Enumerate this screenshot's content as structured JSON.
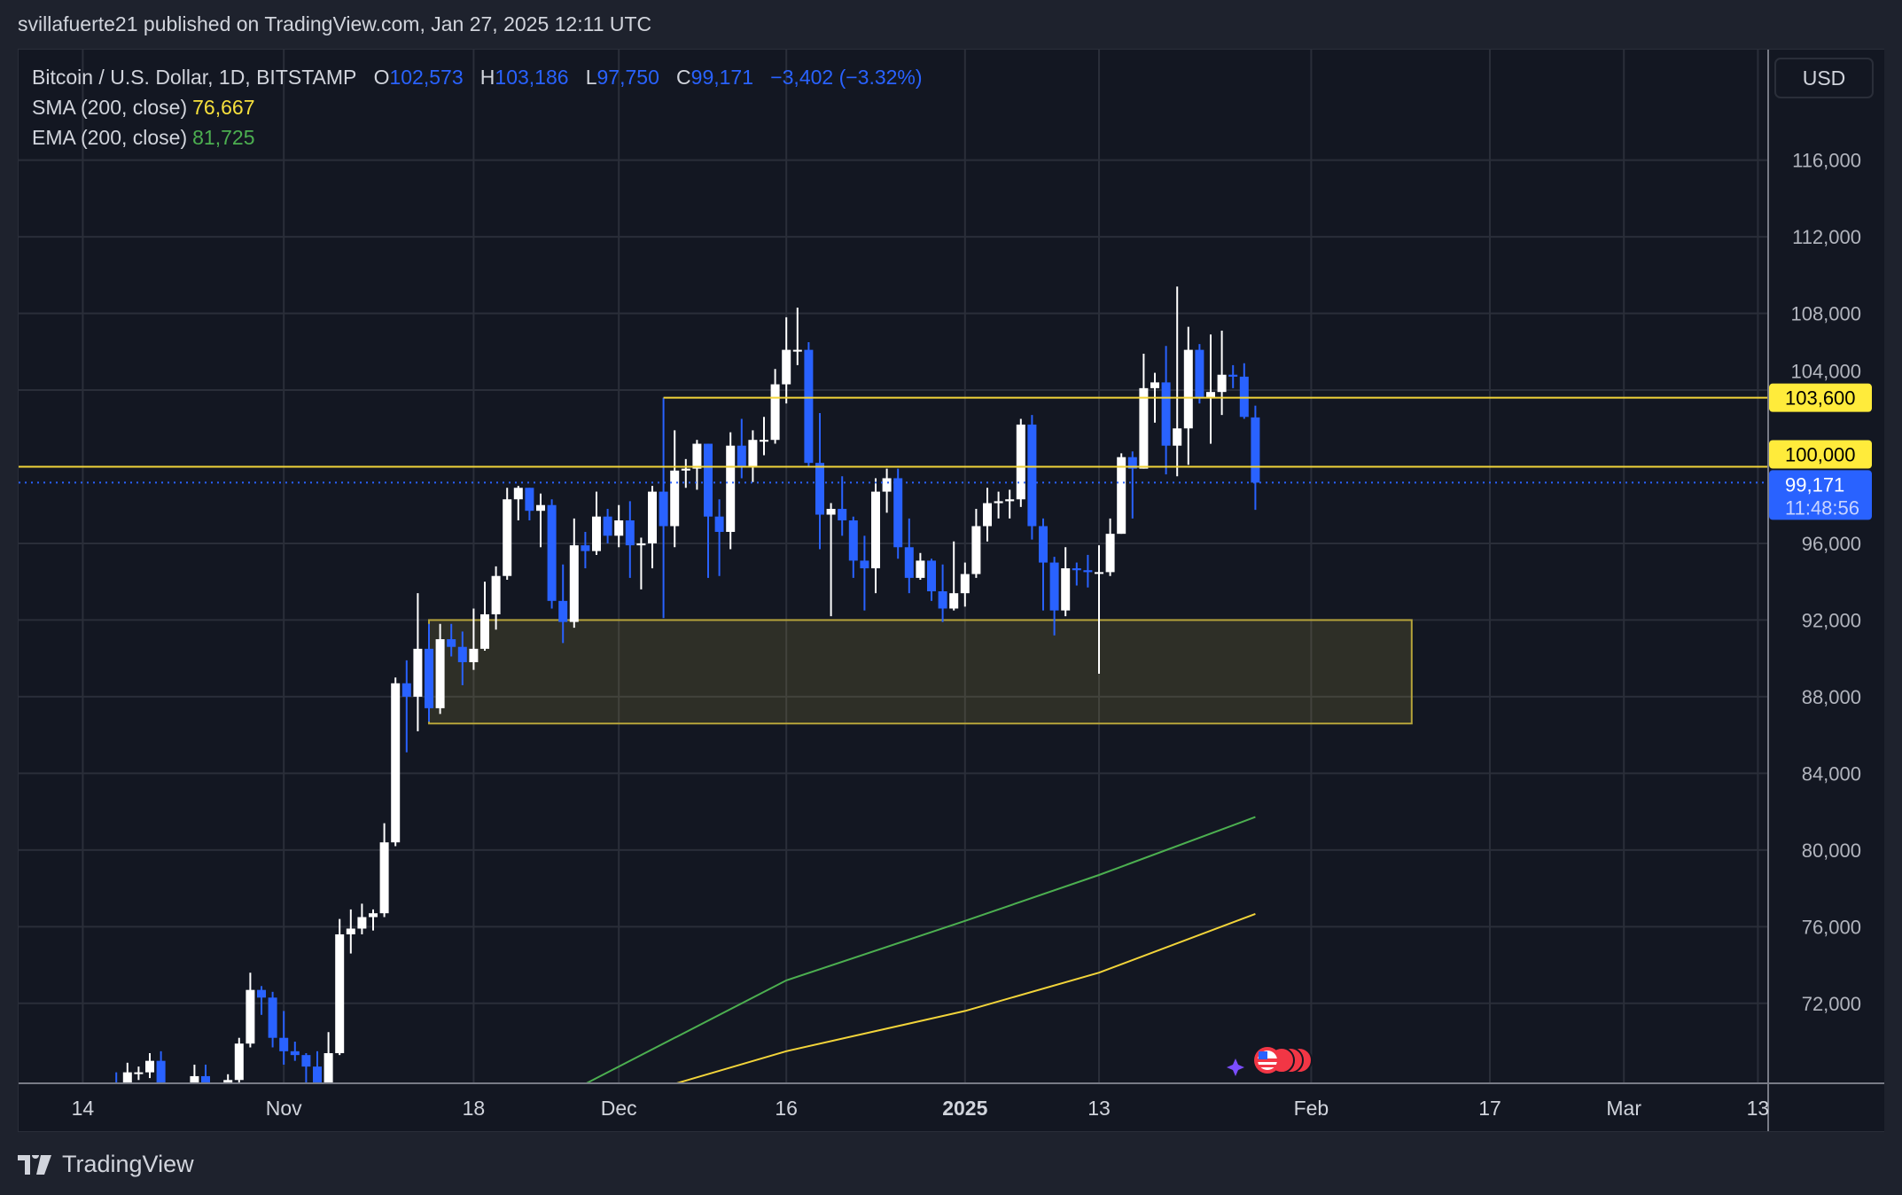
{
  "header": {
    "published": "svillafuerte21 published on TradingView.com, Jan 27, 2025 12:11 UTC"
  },
  "legend": {
    "symbol": "Bitcoin / U.S. Dollar, 1D, BITSTAMP",
    "o_label": "O",
    "o": "102,573",
    "h_label": "H",
    "h": "103,186",
    "l_label": "L",
    "l": "97,750",
    "c_label": "C",
    "c": "99,171",
    "change": "−3,402 (−3.32%)",
    "sma_label": "SMA (200, close)",
    "sma_value": "76,667",
    "ema_label": "EMA (200, close)",
    "ema_value": "81,725"
  },
  "price_axis": {
    "currency": "USD"
  },
  "tags": {
    "level_high": "103,600",
    "level_low": "100,000",
    "last_price": "99,171",
    "countdown": "11:48:56"
  },
  "footer": {
    "brand": "TradingView"
  },
  "colors": {
    "up": "#ffffff",
    "down": "#2962ff",
    "sma": "#f2d43a",
    "ema": "#4caf50",
    "level": "#f2d43a",
    "zone_fill": "#2a2a26",
    "grid": "#2a2e39",
    "bg": "#131722"
  },
  "chart_data": {
    "type": "candlestick",
    "ylim": [
      67800,
      118000
    ],
    "y_ticks": [
      72000,
      76000,
      80000,
      84000,
      88000,
      92000,
      96000,
      100000,
      104000,
      108000,
      112000,
      116000
    ],
    "x_ticks": [
      {
        "date": "2024-10-14",
        "label": "14"
      },
      {
        "date": "2024-11-01",
        "label": "Nov"
      },
      {
        "date": "2024-11-18",
        "label": "18"
      },
      {
        "date": "2024-12-01",
        "label": "Dec"
      },
      {
        "date": "2024-12-16",
        "label": "16"
      },
      {
        "date": "2025-01-01",
        "label": "2025",
        "bold": true
      },
      {
        "date": "2025-01-13",
        "label": "13"
      },
      {
        "date": "2025-02-01",
        "label": "Feb"
      },
      {
        "date": "2025-02-17",
        "label": "17"
      },
      {
        "date": "2025-03-01",
        "label": "Mar"
      },
      {
        "date": "2025-03-13",
        "label": "13"
      }
    ],
    "candle_fields": [
      "date",
      "open",
      "high",
      "low",
      "close"
    ],
    "candles": [
      [
        "2024-10-17",
        67600,
        68400,
        66700,
        67400
      ],
      [
        "2024-10-18",
        67400,
        68900,
        67100,
        68400
      ],
      [
        "2024-10-19",
        68400,
        68700,
        68000,
        68400
      ],
      [
        "2024-10-20",
        68400,
        69400,
        68100,
        69000
      ],
      [
        "2024-10-21",
        69000,
        69500,
        66600,
        67400
      ],
      [
        "2024-10-22",
        67400,
        67800,
        66600,
        67400
      ],
      [
        "2024-10-23",
        67400,
        67500,
        65300,
        66700
      ],
      [
        "2024-10-24",
        66700,
        68800,
        66600,
        68200
      ],
      [
        "2024-10-25",
        68200,
        68800,
        65500,
        66600
      ],
      [
        "2024-10-26",
        66600,
        67400,
        66500,
        67000
      ],
      [
        "2024-10-27",
        67000,
        68300,
        66800,
        68000
      ],
      [
        "2024-10-28",
        68000,
        70200,
        67600,
        69900
      ],
      [
        "2024-10-29",
        69900,
        73600,
        69700,
        72700
      ],
      [
        "2024-10-30",
        72700,
        72900,
        71400,
        72300
      ],
      [
        "2024-10-31",
        72300,
        72600,
        69700,
        70200
      ],
      [
        "2024-11-01",
        70200,
        71600,
        68800,
        69500
      ],
      [
        "2024-11-02",
        69500,
        70000,
        69000,
        69300
      ],
      [
        "2024-11-03",
        69300,
        69400,
        67500,
        68700
      ],
      [
        "2024-11-04",
        68700,
        69500,
        66800,
        67800
      ],
      [
        "2024-11-05",
        67800,
        70500,
        67500,
        69400
      ],
      [
        "2024-11-06",
        69400,
        76400,
        69300,
        75600
      ],
      [
        "2024-11-07",
        75600,
        76900,
        74600,
        75900
      ],
      [
        "2024-11-08",
        75900,
        77200,
        75600,
        76500
      ],
      [
        "2024-11-09",
        76500,
        76900,
        75800,
        76700
      ],
      [
        "2024-11-10",
        76700,
        81400,
        76500,
        80400
      ],
      [
        "2024-11-11",
        80400,
        89000,
        80200,
        88700
      ],
      [
        "2024-11-12",
        88700,
        89900,
        85100,
        88000
      ],
      [
        "2024-11-13",
        88000,
        93400,
        86200,
        90500
      ],
      [
        "2024-11-14",
        90500,
        91800,
        86700,
        87400
      ],
      [
        "2024-11-15",
        87400,
        91800,
        87100,
        91000
      ],
      [
        "2024-11-16",
        91000,
        91800,
        90100,
        90600
      ],
      [
        "2024-11-17",
        90600,
        91400,
        88600,
        89800
      ],
      [
        "2024-11-18",
        89800,
        92600,
        89400,
        90500
      ],
      [
        "2024-11-19",
        90500,
        94000,
        90400,
        92300
      ],
      [
        "2024-11-20",
        92300,
        94800,
        91500,
        94300
      ],
      [
        "2024-11-21",
        94300,
        98900,
        94100,
        98300
      ],
      [
        "2024-11-22",
        98300,
        99000,
        97200,
        98900
      ],
      [
        "2024-11-23",
        98900,
        98900,
        97200,
        97700
      ],
      [
        "2024-11-24",
        97700,
        98600,
        95800,
        98000
      ],
      [
        "2024-11-25",
        98000,
        98300,
        92600,
        93000
      ],
      [
        "2024-11-26",
        93000,
        94900,
        90800,
        91900
      ],
      [
        "2024-11-27",
        91900,
        97300,
        91600,
        95900
      ],
      [
        "2024-11-28",
        95900,
        96600,
        94700,
        95600
      ],
      [
        "2024-11-29",
        95600,
        98700,
        95400,
        97400
      ],
      [
        "2024-11-30",
        97400,
        97800,
        96000,
        96400
      ],
      [
        "2024-12-01",
        96400,
        98000,
        95800,
        97200
      ],
      [
        "2024-12-02",
        97200,
        98200,
        94200,
        95900
      ],
      [
        "2024-12-03",
        95900,
        96300,
        93600,
        96000
      ],
      [
        "2024-12-04",
        96000,
        99000,
        94700,
        98700
      ],
      [
        "2024-12-05",
        98700,
        103600,
        92100,
        96900
      ],
      [
        "2024-12-06",
        96900,
        101900,
        95800,
        99800
      ],
      [
        "2024-12-07",
        99800,
        100400,
        98900,
        99900
      ],
      [
        "2024-12-08",
        99900,
        101400,
        98800,
        101200
      ],
      [
        "2024-12-09",
        101200,
        101200,
        94200,
        97400
      ],
      [
        "2024-12-10",
        97400,
        98300,
        94300,
        96600
      ],
      [
        "2024-12-11",
        96600,
        101800,
        95700,
        101100
      ],
      [
        "2024-12-12",
        101100,
        102500,
        99400,
        100000
      ],
      [
        "2024-12-13",
        100000,
        101900,
        99200,
        101400
      ],
      [
        "2024-12-14",
        101400,
        102600,
        100600,
        101400
      ],
      [
        "2024-12-15",
        101400,
        105100,
        101200,
        104300
      ],
      [
        "2024-12-16",
        104300,
        107800,
        103300,
        106100
      ],
      [
        "2024-12-17",
        106100,
        108300,
        105300,
        106100
      ],
      [
        "2024-12-18",
        106100,
        106500,
        100000,
        100200
      ],
      [
        "2024-12-19",
        100200,
        102800,
        95700,
        97500
      ],
      [
        "2024-12-20",
        97500,
        98100,
        92200,
        97800
      ],
      [
        "2024-12-21",
        97800,
        99500,
        96400,
        97200
      ],
      [
        "2024-12-22",
        97200,
        97400,
        94200,
        95100
      ],
      [
        "2024-12-23",
        95100,
        96400,
        92500,
        94700
      ],
      [
        "2024-12-24",
        94700,
        99400,
        93400,
        98700
      ],
      [
        "2024-12-25",
        98700,
        99900,
        97600,
        99400
      ],
      [
        "2024-12-26",
        99400,
        99900,
        95200,
        95800
      ],
      [
        "2024-12-27",
        95800,
        97300,
        93400,
        94200
      ],
      [
        "2024-12-28",
        94200,
        95500,
        94100,
        95100
      ],
      [
        "2024-12-29",
        95100,
        95200,
        93000,
        93500
      ],
      [
        "2024-12-30",
        93500,
        94900,
        91900,
        92600
      ],
      [
        "2024-12-31",
        92600,
        96100,
        92500,
        93400
      ],
      [
        "2025-01-01",
        93400,
        95000,
        92700,
        94400
      ],
      [
        "2025-01-02",
        94400,
        97800,
        94200,
        96900
      ],
      [
        "2025-01-03",
        96900,
        98900,
        96100,
        98100
      ],
      [
        "2025-01-04",
        98100,
        98700,
        97300,
        98200
      ],
      [
        "2025-01-05",
        98200,
        98800,
        97300,
        98300
      ],
      [
        "2025-01-06",
        98300,
        102500,
        97900,
        102200
      ],
      [
        "2025-01-07",
        102200,
        102700,
        96200,
        96900
      ],
      [
        "2025-01-08",
        96900,
        97300,
        92500,
        95000
      ],
      [
        "2025-01-09",
        95000,
        95300,
        91200,
        92500
      ],
      [
        "2025-01-10",
        92500,
        95800,
        92200,
        94700
      ],
      [
        "2025-01-11",
        94700,
        95000,
        93800,
        94600
      ],
      [
        "2025-01-12",
        94600,
        95400,
        93700,
        94500
      ],
      [
        "2025-01-13",
        94500,
        95900,
        89200,
        94500
      ],
      [
        "2025-01-14",
        94500,
        97300,
        94300,
        96500
      ],
      [
        "2025-01-15",
        96500,
        100700,
        96500,
        100500
      ],
      [
        "2025-01-16",
        100500,
        100800,
        97300,
        99900
      ],
      [
        "2025-01-17",
        99900,
        105900,
        99900,
        104100
      ],
      [
        "2025-01-18",
        104100,
        104900,
        102300,
        104400
      ],
      [
        "2025-01-19",
        104400,
        106300,
        99600,
        101100
      ],
      [
        "2025-01-20",
        101100,
        109400,
        99500,
        102000
      ],
      [
        "2025-01-21",
        102000,
        107300,
        100100,
        106100
      ],
      [
        "2025-01-22",
        106100,
        106400,
        103300,
        103600
      ],
      [
        "2025-01-23",
        103600,
        106900,
        101200,
        103900
      ],
      [
        "2025-01-24",
        103900,
        107100,
        102700,
        104800
      ],
      [
        "2025-01-25",
        104800,
        105300,
        104100,
        104700
      ],
      [
        "2025-01-26",
        104700,
        105400,
        102500,
        102600
      ],
      [
        "2025-01-27",
        102573,
        103186,
        97750,
        99171
      ]
    ],
    "series": [
      {
        "name": "SMA (200, close)",
        "points": [
          [
            "2024-12-06",
            67800
          ],
          [
            "2024-12-16",
            69500
          ],
          [
            "2025-01-01",
            71600
          ],
          [
            "2025-01-13",
            73600
          ],
          [
            "2025-01-27",
            76667
          ]
        ]
      },
      {
        "name": "EMA (200, close)",
        "points": [
          [
            "2024-11-28",
            67800
          ],
          [
            "2024-12-16",
            73200
          ],
          [
            "2025-01-01",
            76300
          ],
          [
            "2025-01-13",
            78700
          ],
          [
            "2025-01-27",
            81725
          ]
        ]
      }
    ],
    "levels": [
      {
        "price": 103600,
        "from": "2024-12-05"
      },
      {
        "price": 100000,
        "from": null
      }
    ],
    "zone": {
      "from": "2024-11-14",
      "to": "2025-02-10",
      "top": 92000,
      "bottom": 86600
    },
    "last_price": 99171
  }
}
